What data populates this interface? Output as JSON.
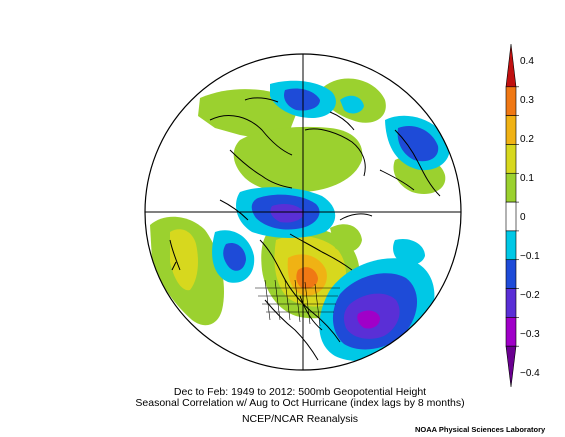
{
  "map": {
    "projection": "north-polar-stereographic",
    "field": "500mb Geopotential Height seasonal correlation",
    "region_colors": {
      "negative_strong": "#a000c8",
      "negative_mid": "#5a2fd6",
      "negative_weak": "#1e4bd8",
      "negative_light": "#00c8e6",
      "neutral": "#ffffff",
      "positive_light": "#9bd12f",
      "positive_weak": "#d7d81e",
      "positive_mid": "#f0b214",
      "positive_strong": "#f07814"
    }
  },
  "colorbar": {
    "ticks": [
      "0.4",
      "0.3",
      "0.2",
      "0.1",
      "0",
      "−0.1",
      "−0.2",
      "−0.3",
      "−0.4"
    ],
    "colors": [
      "#c01010",
      "#f07814",
      "#f0b214",
      "#d7d81e",
      "#9bd12f",
      "#ffffff",
      "#00c8e6",
      "#1e4bd8",
      "#5a2fd6",
      "#a000c8",
      "#6a0090"
    ]
  },
  "caption": {
    "line1": "Dec to Feb: 1949 to 2012: 500mb Geopotential Height",
    "line2": "Seasonal Correlation w/ Aug to Oct Hurricane (index lags by 8 months)",
    "line3": "NCEP/NCAR Reanalysis"
  },
  "credit": "NOAA Physical Sciences Laboratory"
}
